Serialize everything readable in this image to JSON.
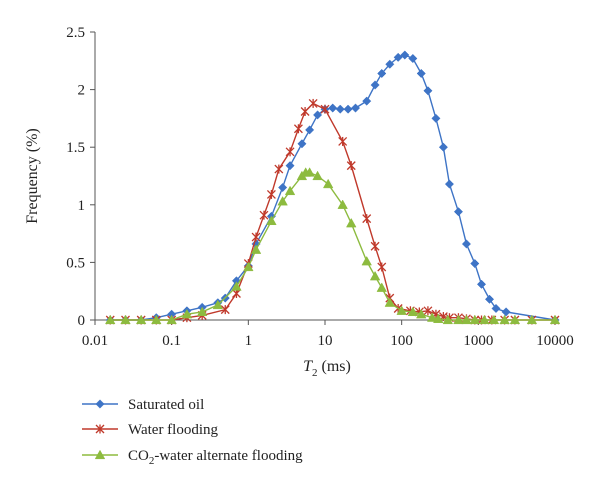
{
  "chart_data": {
    "type": "line",
    "xscale": "log",
    "xlim": [
      0.01,
      10000
    ],
    "ylim": [
      0,
      2.5
    ],
    "xticks": [
      "0.01",
      "0.1",
      "1",
      "10",
      "100",
      "1000",
      "10000"
    ],
    "yticks": [
      "0",
      "0.5",
      "1",
      "1.5",
      "2",
      "2.5"
    ],
    "xlabel_main": "T",
    "xlabel_sub": "2",
    "xlabel_unit": " (ms)",
    "ylabel": "Frequency (%)",
    "grid": false,
    "legend_position": "bottom-left",
    "series": [
      {
        "name": "Saturated oil",
        "color": "#3e74c6",
        "marker": "diamond",
        "points": [
          [
            0.0158,
            0.0
          ],
          [
            0.025,
            0.0
          ],
          [
            0.04,
            0.0
          ],
          [
            0.063,
            0.02
          ],
          [
            0.1,
            0.05
          ],
          [
            0.158,
            0.08
          ],
          [
            0.25,
            0.11
          ],
          [
            0.4,
            0.15
          ],
          [
            0.5,
            0.19
          ],
          [
            0.7,
            0.34
          ],
          [
            1.0,
            0.47
          ],
          [
            1.26,
            0.66
          ],
          [
            2.0,
            0.9
          ],
          [
            2.8,
            1.15
          ],
          [
            3.5,
            1.34
          ],
          [
            5.0,
            1.53
          ],
          [
            6.3,
            1.65
          ],
          [
            8.0,
            1.78
          ],
          [
            10.0,
            1.83
          ],
          [
            12.6,
            1.84
          ],
          [
            15.8,
            1.83
          ],
          [
            20.0,
            1.83
          ],
          [
            25.0,
            1.84
          ],
          [
            35.0,
            1.9
          ],
          [
            45.0,
            2.04
          ],
          [
            55.0,
            2.14
          ],
          [
            70.0,
            2.22
          ],
          [
            90.0,
            2.28
          ],
          [
            110.0,
            2.3
          ],
          [
            140.0,
            2.27
          ],
          [
            180.0,
            2.14
          ],
          [
            220.0,
            1.99
          ],
          [
            280.0,
            1.75
          ],
          [
            350.0,
            1.5
          ],
          [
            420.0,
            1.18
          ],
          [
            550.0,
            0.94
          ],
          [
            700.0,
            0.66
          ],
          [
            900.0,
            0.49
          ],
          [
            1100.0,
            0.31
          ],
          [
            1400.0,
            0.18
          ],
          [
            1700.0,
            0.1
          ],
          [
            2300.0,
            0.07
          ],
          [
            10000.0,
            0.0
          ]
        ]
      },
      {
        "name": "Water flooding",
        "color": "#c0392b",
        "marker": "star",
        "points": [
          [
            0.0158,
            0.0
          ],
          [
            0.025,
            0.0
          ],
          [
            0.04,
            0.0
          ],
          [
            0.063,
            0.0
          ],
          [
            0.1,
            0.0
          ],
          [
            0.158,
            0.02
          ],
          [
            0.25,
            0.04
          ],
          [
            0.5,
            0.09
          ],
          [
            0.7,
            0.23
          ],
          [
            1.0,
            0.49
          ],
          [
            1.26,
            0.72
          ],
          [
            1.6,
            0.91
          ],
          [
            2.0,
            1.09
          ],
          [
            2.5,
            1.31
          ],
          [
            3.5,
            1.46
          ],
          [
            4.5,
            1.66
          ],
          [
            5.5,
            1.81
          ],
          [
            7.0,
            1.88
          ],
          [
            10.0,
            1.83
          ],
          [
            17.0,
            1.55
          ],
          [
            22.0,
            1.34
          ],
          [
            35.0,
            0.88
          ],
          [
            45.0,
            0.64
          ],
          [
            55.0,
            0.46
          ],
          [
            70.0,
            0.19
          ],
          [
            90.0,
            0.1
          ],
          [
            130.0,
            0.08
          ],
          [
            170.0,
            0.07
          ],
          [
            220.0,
            0.08
          ],
          [
            280.0,
            0.05
          ],
          [
            350.0,
            0.03
          ],
          [
            420.0,
            0.02
          ],
          [
            550.0,
            0.02
          ],
          [
            700.0,
            0.01
          ],
          [
            900.0,
            0.0
          ],
          [
            1100.0,
            0.0
          ],
          [
            1500.0,
            0.0
          ],
          [
            2200.0,
            0.0
          ],
          [
            3000.0,
            0.0
          ],
          [
            5000.0,
            0.0
          ],
          [
            10000.0,
            0.0
          ]
        ]
      },
      {
        "name": "CO2-water alternate flooding",
        "name_plain": "CO",
        "name_sub": "2",
        "name_rest": "-water alternate flooding",
        "color": "#8dbb3f",
        "marker": "triangle",
        "points": [
          [
            0.0158,
            0.0
          ],
          [
            0.025,
            0.0
          ],
          [
            0.04,
            0.0
          ],
          [
            0.063,
            0.0
          ],
          [
            0.1,
            0.0
          ],
          [
            0.158,
            0.05
          ],
          [
            0.25,
            0.07
          ],
          [
            0.4,
            0.13
          ],
          [
            0.7,
            0.29
          ],
          [
            1.0,
            0.46
          ],
          [
            1.26,
            0.61
          ],
          [
            2.0,
            0.86
          ],
          [
            2.8,
            1.03
          ],
          [
            3.5,
            1.12
          ],
          [
            5.0,
            1.25
          ],
          [
            5.6,
            1.28
          ],
          [
            6.3,
            1.28
          ],
          [
            8.0,
            1.25
          ],
          [
            11.0,
            1.18
          ],
          [
            17.0,
            1.0
          ],
          [
            22.0,
            0.84
          ],
          [
            35.0,
            0.51
          ],
          [
            45.0,
            0.38
          ],
          [
            55.0,
            0.28
          ],
          [
            70.0,
            0.15
          ],
          [
            100.0,
            0.08
          ],
          [
            140.0,
            0.07
          ],
          [
            180.0,
            0.05
          ],
          [
            250.0,
            0.02
          ],
          [
            300.0,
            0.01
          ],
          [
            400.0,
            0.0
          ],
          [
            550.0,
            0.0
          ],
          [
            700.0,
            0.0
          ],
          [
            900.0,
            0.0
          ],
          [
            1200.0,
            0.0
          ],
          [
            1600.0,
            0.0
          ],
          [
            2200.0,
            0.0
          ],
          [
            3000.0,
            0.0
          ],
          [
            5000.0,
            0.0
          ],
          [
            10000.0,
            0.0
          ]
        ]
      }
    ]
  }
}
